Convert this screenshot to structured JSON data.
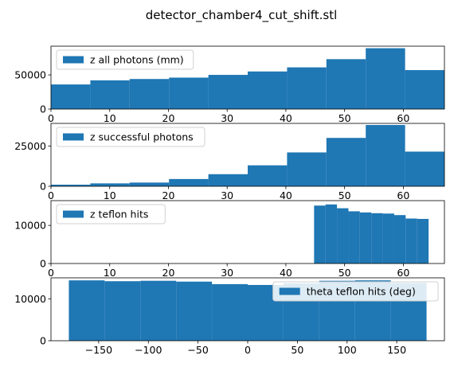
{
  "figure": {
    "title": "detector_chamber4_cut_shift.stl"
  },
  "colors": {
    "bar": "#1f77b4",
    "axis": "#000000",
    "legend_border": "#d0d0d0"
  },
  "chart_data": [
    {
      "type": "bar",
      "subtype": "histogram",
      "legend": "z all photons (mm)",
      "legend_position": "upper left",
      "xlim": [
        0,
        67
      ],
      "ylim": [
        0,
        92000
      ],
      "xticks": [
        0,
        10,
        20,
        30,
        40,
        50,
        60
      ],
      "yticks": [
        0,
        50000
      ],
      "bin_edges": [
        0,
        6.7,
        13.4,
        20.1,
        26.8,
        33.5,
        40.2,
        46.9,
        53.6,
        60.3,
        67
      ],
      "values": [
        36000,
        42000,
        44000,
        46000,
        50000,
        55000,
        61000,
        73000,
        89000,
        57000
      ]
    },
    {
      "type": "bar",
      "subtype": "histogram",
      "legend": "z successful photons",
      "legend_position": "upper left",
      "xlim": [
        0,
        67
      ],
      "ylim": [
        0,
        39000
      ],
      "xticks": [
        0,
        10,
        20,
        30,
        40,
        50,
        60
      ],
      "yticks": [
        0,
        25000
      ],
      "bin_edges": [
        0,
        6.7,
        13.4,
        20.1,
        26.8,
        33.5,
        40.2,
        46.9,
        53.6,
        60.3,
        67
      ],
      "values": [
        1000,
        1800,
        2300,
        4500,
        7500,
        13000,
        21000,
        30000,
        38000,
        21500
      ]
    },
    {
      "type": "bar",
      "subtype": "histogram",
      "legend": "z teflon hits",
      "legend_position": "upper left",
      "xlim": [
        0,
        67
      ],
      "ylim": [
        0,
        16500
      ],
      "xticks": [
        0,
        10,
        20,
        30,
        40,
        50,
        60
      ],
      "yticks": [
        0,
        10000
      ],
      "bin_edges": [
        44.8,
        46.75,
        48.7,
        50.65,
        52.6,
        54.55,
        56.5,
        58.45,
        60.4,
        62.35,
        64.3
      ],
      "values": [
        15200,
        15500,
        14500,
        13700,
        13400,
        13200,
        13100,
        12700,
        11800,
        11700
      ]
    },
    {
      "type": "bar",
      "subtype": "histogram",
      "legend": "theta teflon hits (deg)",
      "legend_position": "upper right",
      "xlim": [
        -198,
        198
      ],
      "ylim": [
        0,
        15000
      ],
      "xticks": [
        -150,
        -100,
        -50,
        0,
        50,
        100,
        150
      ],
      "yticks": [
        0,
        10000
      ],
      "bin_edges": [
        -180,
        -144,
        -108,
        -72,
        -36,
        0,
        36,
        72,
        108,
        144,
        180
      ],
      "values": [
        14400,
        14200,
        14300,
        14100,
        13500,
        13300,
        13700,
        14300,
        14400,
        13800
      ]
    }
  ]
}
